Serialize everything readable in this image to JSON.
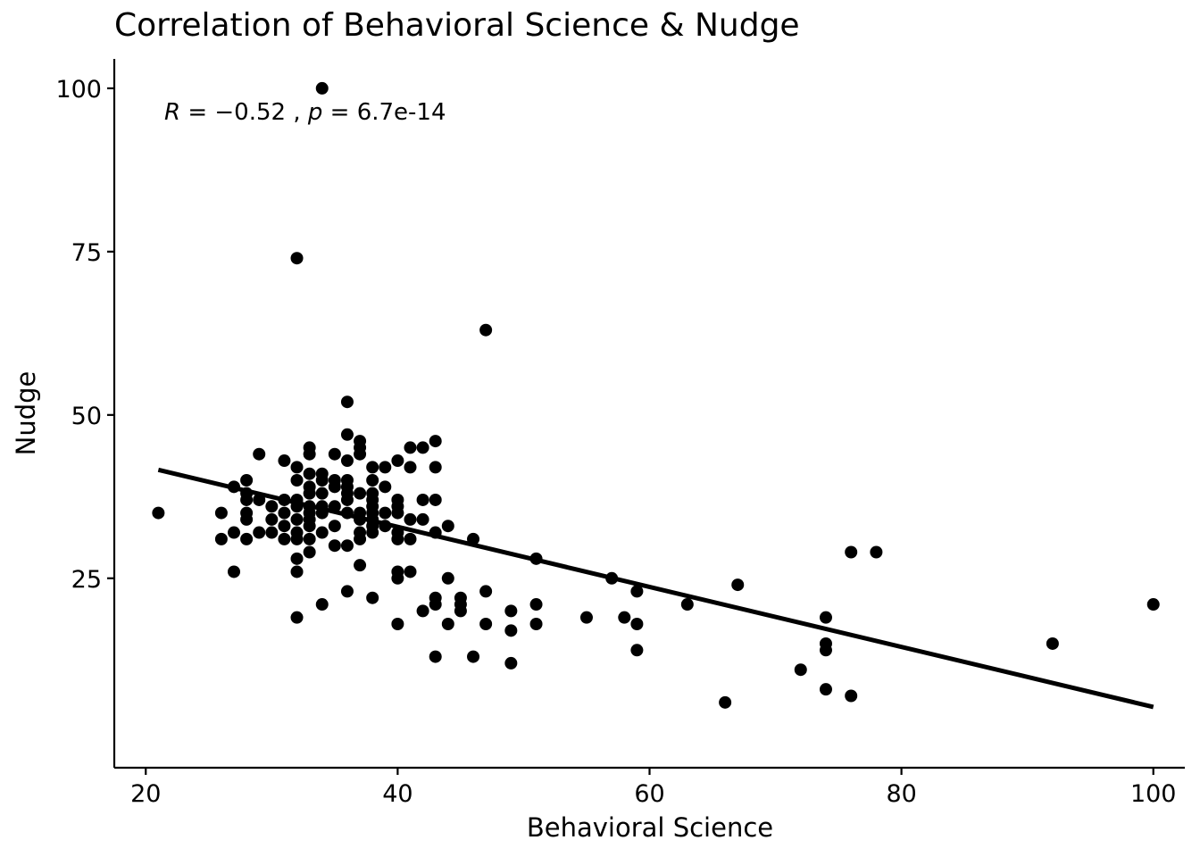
{
  "chart_data": {
    "type": "scatter",
    "title": "Correlation of Behavioral Science & Nudge",
    "xlabel": "Behavioral Science",
    "ylabel": "Nudge",
    "xlim": [
      17.5,
      102.5
    ],
    "ylim": [
      -4,
      104.5
    ],
    "x_ticks": [
      20,
      40,
      60,
      80,
      100
    ],
    "y_ticks": [
      25,
      50,
      75,
      100
    ],
    "x_tick_labels": [
      "20",
      "40",
      "60",
      "80",
      "100"
    ],
    "y_tick_labels": [
      "25",
      "50",
      "75",
      "100"
    ],
    "grid": false,
    "legend": "none",
    "annotation": {
      "r_symbol": "R",
      "r_text": " = −0.52 , ",
      "p_symbol": "p",
      "p_text": " = 6.7e-14"
    },
    "trend_line": {
      "x": [
        21,
        100
      ],
      "y": [
        41.6,
        5.3
      ]
    },
    "colors": {
      "points": "#000000",
      "line": "#000000",
      "background": "#ffffff"
    },
    "points": [
      [
        21,
        35
      ],
      [
        26,
        35
      ],
      [
        26,
        31
      ],
      [
        27,
        39
      ],
      [
        27,
        32
      ],
      [
        27,
        26
      ],
      [
        28,
        40
      ],
      [
        28,
        38
      ],
      [
        28,
        37
      ],
      [
        28,
        35
      ],
      [
        28,
        34
      ],
      [
        28,
        31
      ],
      [
        29,
        44
      ],
      [
        29,
        37
      ],
      [
        29,
        32
      ],
      [
        30,
        36
      ],
      [
        30,
        34
      ],
      [
        30,
        32
      ],
      [
        31,
        43
      ],
      [
        31,
        37
      ],
      [
        31,
        35
      ],
      [
        31,
        33
      ],
      [
        31,
        31
      ],
      [
        32,
        42
      ],
      [
        32,
        40
      ],
      [
        32,
        37
      ],
      [
        32,
        36
      ],
      [
        32,
        34
      ],
      [
        32,
        32
      ],
      [
        32,
        31
      ],
      [
        32,
        28
      ],
      [
        32,
        26
      ],
      [
        32,
        19
      ],
      [
        32,
        74
      ],
      [
        33,
        45
      ],
      [
        33,
        44
      ],
      [
        33,
        41
      ],
      [
        33,
        39
      ],
      [
        33,
        38
      ],
      [
        33,
        36
      ],
      [
        33,
        35
      ],
      [
        33,
        34
      ],
      [
        33,
        33
      ],
      [
        33,
        31
      ],
      [
        33,
        29
      ],
      [
        34,
        100
      ],
      [
        34,
        41
      ],
      [
        34,
        40
      ],
      [
        34,
        38
      ],
      [
        34,
        36
      ],
      [
        34,
        35
      ],
      [
        34,
        32
      ],
      [
        34,
        21
      ],
      [
        35,
        44
      ],
      [
        35,
        40
      ],
      [
        35,
        39
      ],
      [
        35,
        36
      ],
      [
        35,
        33
      ],
      [
        35,
        30
      ],
      [
        36,
        52
      ],
      [
        36,
        47
      ],
      [
        36,
        43
      ],
      [
        36,
        40
      ],
      [
        36,
        39
      ],
      [
        36,
        38
      ],
      [
        36,
        37
      ],
      [
        36,
        35
      ],
      [
        36,
        30
      ],
      [
        36,
        23
      ],
      [
        37,
        46
      ],
      [
        37,
        45
      ],
      [
        37,
        44
      ],
      [
        37,
        38
      ],
      [
        37,
        35
      ],
      [
        37,
        34
      ],
      [
        37,
        32
      ],
      [
        37,
        31
      ],
      [
        37,
        27
      ],
      [
        38,
        42
      ],
      [
        38,
        40
      ],
      [
        38,
        38
      ],
      [
        38,
        37
      ],
      [
        38,
        36
      ],
      [
        38,
        35
      ],
      [
        38,
        34
      ],
      [
        38,
        33
      ],
      [
        38,
        32
      ],
      [
        38,
        22
      ],
      [
        39,
        42
      ],
      [
        39,
        39
      ],
      [
        39,
        35
      ],
      [
        39,
        33
      ],
      [
        40,
        43
      ],
      [
        40,
        37
      ],
      [
        40,
        36
      ],
      [
        40,
        35
      ],
      [
        40,
        32
      ],
      [
        40,
        31
      ],
      [
        40,
        26
      ],
      [
        40,
        25
      ],
      [
        40,
        18
      ],
      [
        41,
        45
      ],
      [
        41,
        42
      ],
      [
        41,
        34
      ],
      [
        41,
        31
      ],
      [
        41,
        26
      ],
      [
        42,
        45
      ],
      [
        42,
        37
      ],
      [
        42,
        34
      ],
      [
        42,
        20
      ],
      [
        43,
        46
      ],
      [
        43,
        42
      ],
      [
        43,
        37
      ],
      [
        43,
        32
      ],
      [
        43,
        22
      ],
      [
        43,
        21
      ],
      [
        43,
        13
      ],
      [
        44,
        33
      ],
      [
        44,
        25
      ],
      [
        44,
        18
      ],
      [
        45,
        22
      ],
      [
        45,
        21
      ],
      [
        45,
        20
      ],
      [
        46,
        31
      ],
      [
        46,
        13
      ],
      [
        47,
        63
      ],
      [
        47,
        23
      ],
      [
        47,
        18
      ],
      [
        49,
        20
      ],
      [
        49,
        17
      ],
      [
        49,
        12
      ],
      [
        51,
        28
      ],
      [
        51,
        21
      ],
      [
        51,
        18
      ],
      [
        55,
        19
      ],
      [
        57,
        25
      ],
      [
        58,
        19
      ],
      [
        59,
        23
      ],
      [
        59,
        18
      ],
      [
        59,
        14
      ],
      [
        63,
        21
      ],
      [
        66,
        6
      ],
      [
        67,
        24
      ],
      [
        72,
        11
      ],
      [
        74,
        19
      ],
      [
        74,
        15
      ],
      [
        74,
        14
      ],
      [
        74,
        8
      ],
      [
        76,
        29
      ],
      [
        76,
        7
      ],
      [
        78,
        29
      ],
      [
        92,
        15
      ],
      [
        100,
        21
      ]
    ]
  }
}
